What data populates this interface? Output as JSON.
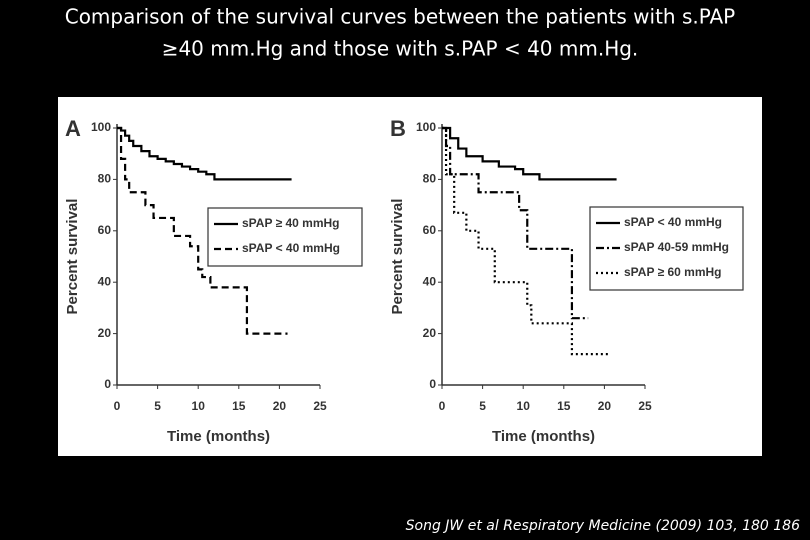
{
  "slide": {
    "title_lines": [
      "Comparison of the survival curves between the patients with s.PAP",
      "≥40 mm.Hg and those with s.PAP < 40 mm.Hg."
    ],
    "citation": "Song JW et al Respiratory Medicine (2009) 103, 180 186"
  },
  "chart_data": [
    {
      "type": "step",
      "panel": "A",
      "xlabel": "Time (months)",
      "ylabel": "Percent survival",
      "xlim": [
        0,
        25
      ],
      "xticks": [
        0,
        5,
        10,
        15,
        20,
        25
      ],
      "ylim": [
        0,
        100
      ],
      "yticks": [
        0,
        20,
        40,
        60,
        80,
        100
      ],
      "grid": false,
      "series": [
        {
          "name": "sPAP ≥ 40 mmHg",
          "color": "#000000",
          "dash": "solid",
          "x": [
            0,
            0.5,
            1,
            1.5,
            2,
            3,
            4,
            5,
            6,
            7,
            8,
            9,
            10,
            11,
            12,
            21.5
          ],
          "values": [
            100,
            99,
            97,
            95,
            93,
            91,
            89,
            88,
            87,
            86,
            85,
            84,
            83,
            82,
            80,
            80
          ]
        },
        {
          "name": "sPAP < 40 mmHg",
          "color": "#000000",
          "dash": "dashed",
          "x": [
            0,
            0.5,
            1,
            1.5,
            3.5,
            4.5,
            7,
            9,
            10,
            10.5,
            11.5,
            16,
            21
          ],
          "values": [
            100,
            88,
            80,
            75,
            70,
            65,
            58,
            54,
            45,
            42,
            38,
            20,
            20
          ]
        }
      ]
    },
    {
      "type": "step",
      "panel": "B",
      "xlabel": "Time (months)",
      "ylabel": "Percent survival",
      "xlim": [
        0,
        25
      ],
      "xticks": [
        0,
        5,
        10,
        15,
        20,
        25
      ],
      "ylim": [
        0,
        100
      ],
      "yticks": [
        0,
        20,
        40,
        60,
        80,
        100
      ],
      "grid": false,
      "series": [
        {
          "name": "sPAP < 40 mmHg",
          "color": "#000000",
          "dash": "solid",
          "x": [
            0,
            1,
            2,
            3,
            5,
            7,
            9,
            10,
            12,
            21.5
          ],
          "values": [
            100,
            96,
            92,
            89,
            87,
            85,
            84,
            82,
            80,
            80
          ]
        },
        {
          "name": "sPAP 40-59 mmHg",
          "color": "#000000",
          "dash": "dashdot",
          "x": [
            0,
            0.5,
            1,
            4.5,
            9.5,
            10.5,
            16,
            18
          ],
          "values": [
            100,
            93,
            82,
            75,
            68,
            53,
            26,
            26
          ]
        },
        {
          "name": "sPAP ≥ 60 mmHg",
          "color": "#000000",
          "dash": "dotted",
          "x": [
            0,
            0.5,
            1.5,
            3,
            4.5,
            6.5,
            10.5,
            11,
            16,
            20.5
          ],
          "values": [
            100,
            82,
            67,
            60,
            53,
            40,
            31,
            24,
            12,
            12
          ]
        }
      ]
    }
  ]
}
